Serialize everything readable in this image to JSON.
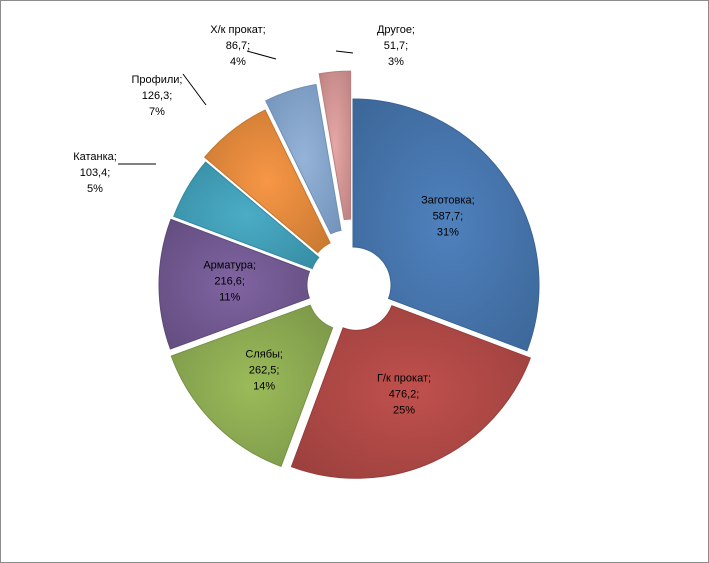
{
  "chart_data": {
    "type": "pie",
    "exploded": true,
    "title": "",
    "categories": [
      "Заготовка",
      "Г/к прокат",
      "Слябы",
      "Арматура",
      "Катанка",
      "Профили",
      "Х/к прокат",
      "Другое"
    ],
    "values": [
      587.7,
      476.2,
      262.5,
      216.6,
      103.4,
      126.3,
      86.7,
      51.7
    ],
    "value_labels": [
      "587,7",
      "476,2",
      "262,5",
      "216,6",
      "103,4",
      "126,3",
      "86,7",
      "51,7"
    ],
    "percent_labels": [
      "31%",
      "25%",
      "14%",
      "11%",
      "5%",
      "7%",
      "4%",
      "3%"
    ],
    "colors": [
      "#4f81bd",
      "#c0504d",
      "#9bbb59",
      "#8064a2",
      "#4bacc6",
      "#f79646",
      "#95b3d7",
      "#e6a7a6"
    ],
    "border_colors": [
      "#3a6495",
      "#963e3b",
      "#779247",
      "#5f4a7a",
      "#348aa0",
      "#c4762f",
      "#7090b8",
      "#b97f7e"
    ],
    "legend": "none"
  }
}
